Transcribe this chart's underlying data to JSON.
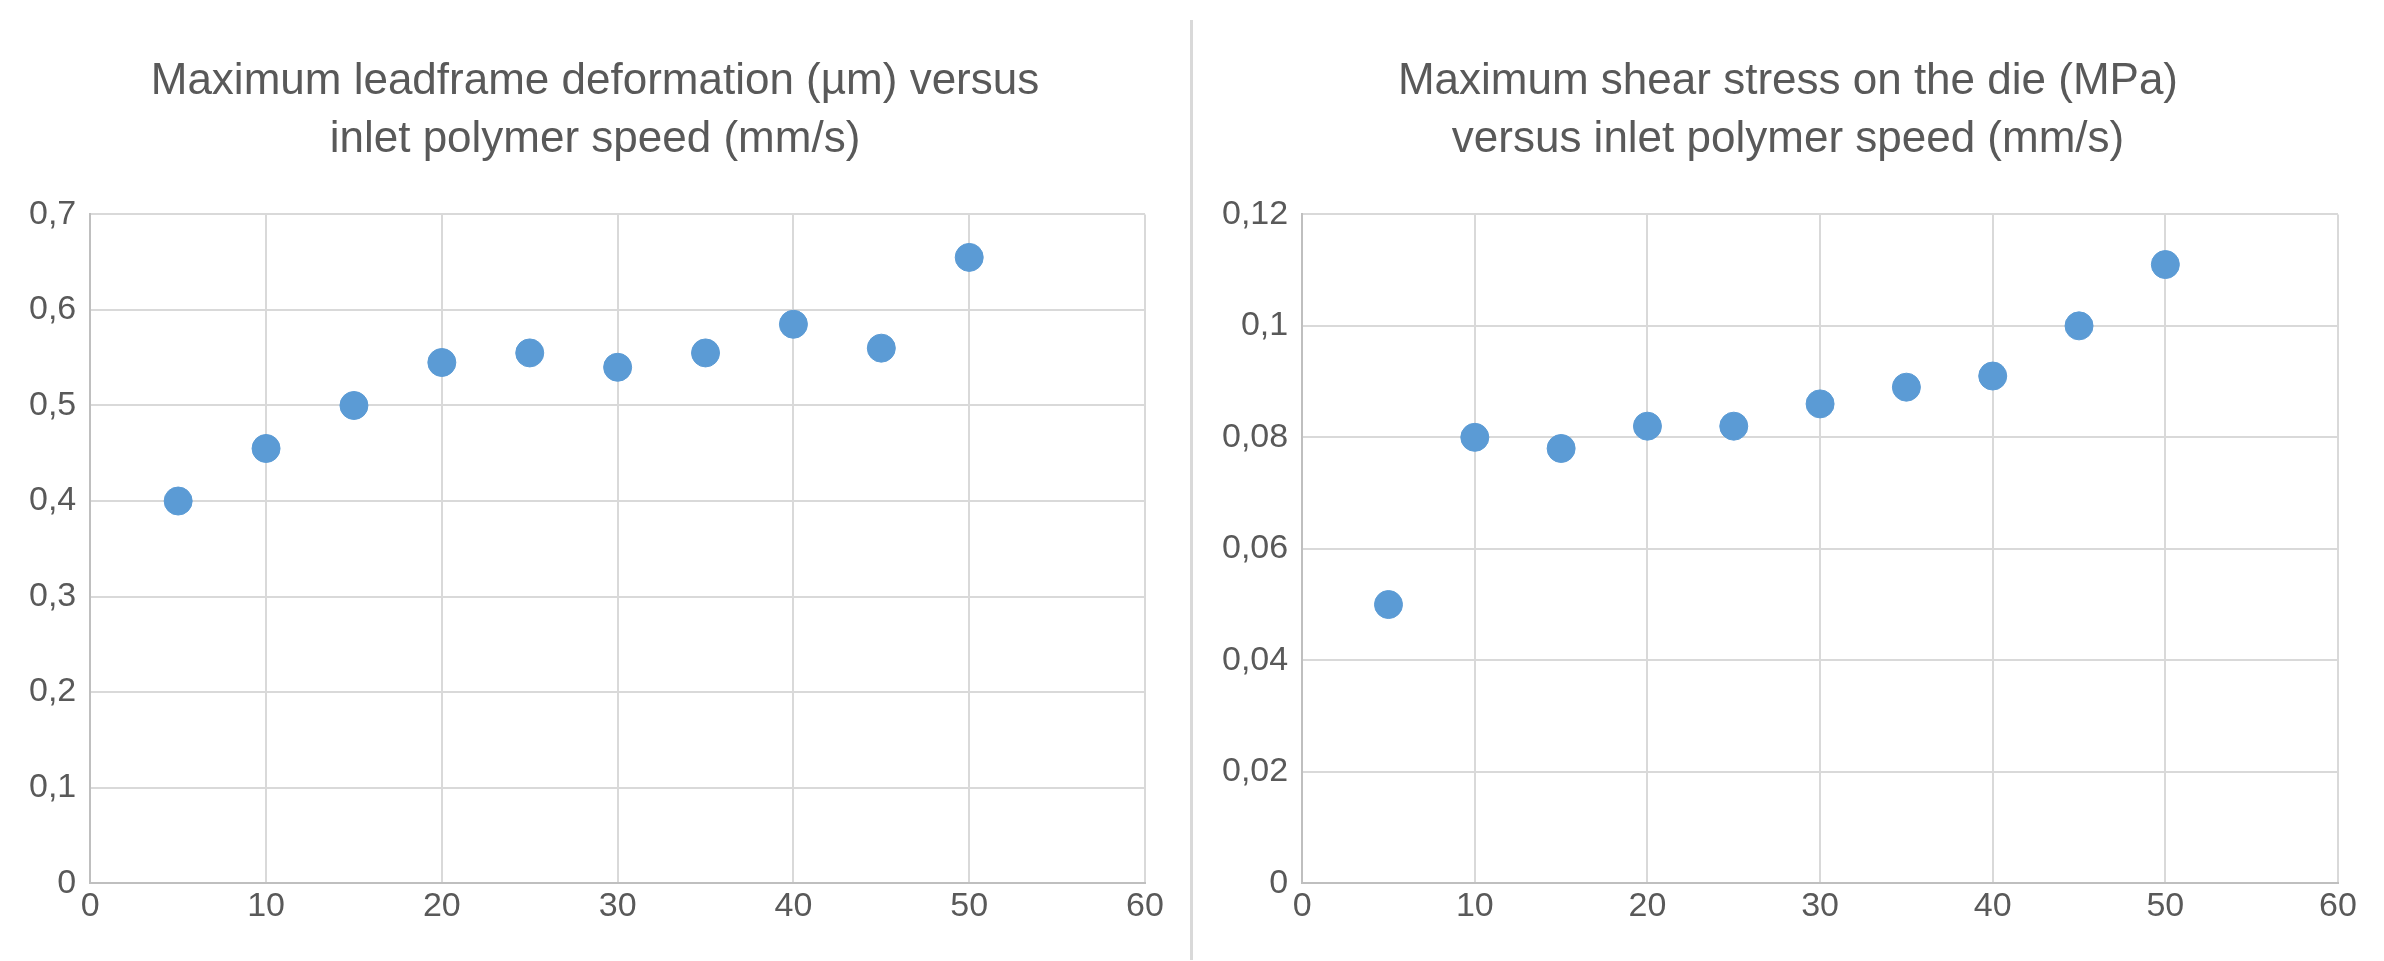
{
  "chart_data": [
    {
      "type": "scatter",
      "title": "Maximum leadframe deformation (µm) versus inlet polymer speed (mm/s)",
      "x": [
        5,
        10,
        15,
        20,
        25,
        30,
        35,
        40,
        45,
        50
      ],
      "series": [
        {
          "color": "#5b9bd5",
          "values": [
            0.4,
            0.455,
            0.5,
            0.545,
            0.555,
            0.54,
            0.555,
            0.585,
            0.56,
            0.655
          ]
        }
      ],
      "xlim": [
        0,
        60
      ],
      "xticks": [
        0,
        10,
        20,
        30,
        40,
        50,
        60
      ],
      "ylim": [
        0,
        0.7
      ],
      "yticks": [
        0,
        {
          "value": 0.1,
          "label": "0,1"
        },
        {
          "value": 0.2,
          "label": "0,2"
        },
        {
          "value": 0.3,
          "label": "0,3"
        },
        {
          "value": 0.4,
          "label": "0,4"
        },
        {
          "value": 0.5,
          "label": "0,5"
        },
        {
          "value": 0.6,
          "label": "0,6"
        },
        {
          "value": 0.7,
          "label": "0,7"
        }
      ],
      "grid": true,
      "legend": false,
      "marker": "circle"
    },
    {
      "type": "scatter",
      "title": "Maximum shear stress on the die (MPa) versus inlet polymer speed (mm/s)",
      "x": [
        5,
        10,
        15,
        20,
        25,
        30,
        35,
        40,
        45,
        50
      ],
      "series": [
        {
          "color": "#5b9bd5",
          "values": [
            0.05,
            0.08,
            0.078,
            0.082,
            0.082,
            0.086,
            0.089,
            0.091,
            0.1,
            0.111
          ]
        }
      ],
      "xlim": [
        0,
        60
      ],
      "xticks": [
        0,
        10,
        20,
        30,
        40,
        50,
        60
      ],
      "ylim": [
        0,
        0.12
      ],
      "yticks": [
        0,
        {
          "value": 0.02,
          "label": "0,02"
        },
        {
          "value": 0.04,
          "label": "0,04"
        },
        {
          "value": 0.06,
          "label": "0,06"
        },
        {
          "value": 0.08,
          "label": "0,08"
        },
        {
          "value": 0.1,
          "label": "0,1"
        },
        {
          "value": 0.12,
          "label": "0,12"
        }
      ],
      "grid": true,
      "legend": false,
      "marker": "circle"
    }
  ]
}
